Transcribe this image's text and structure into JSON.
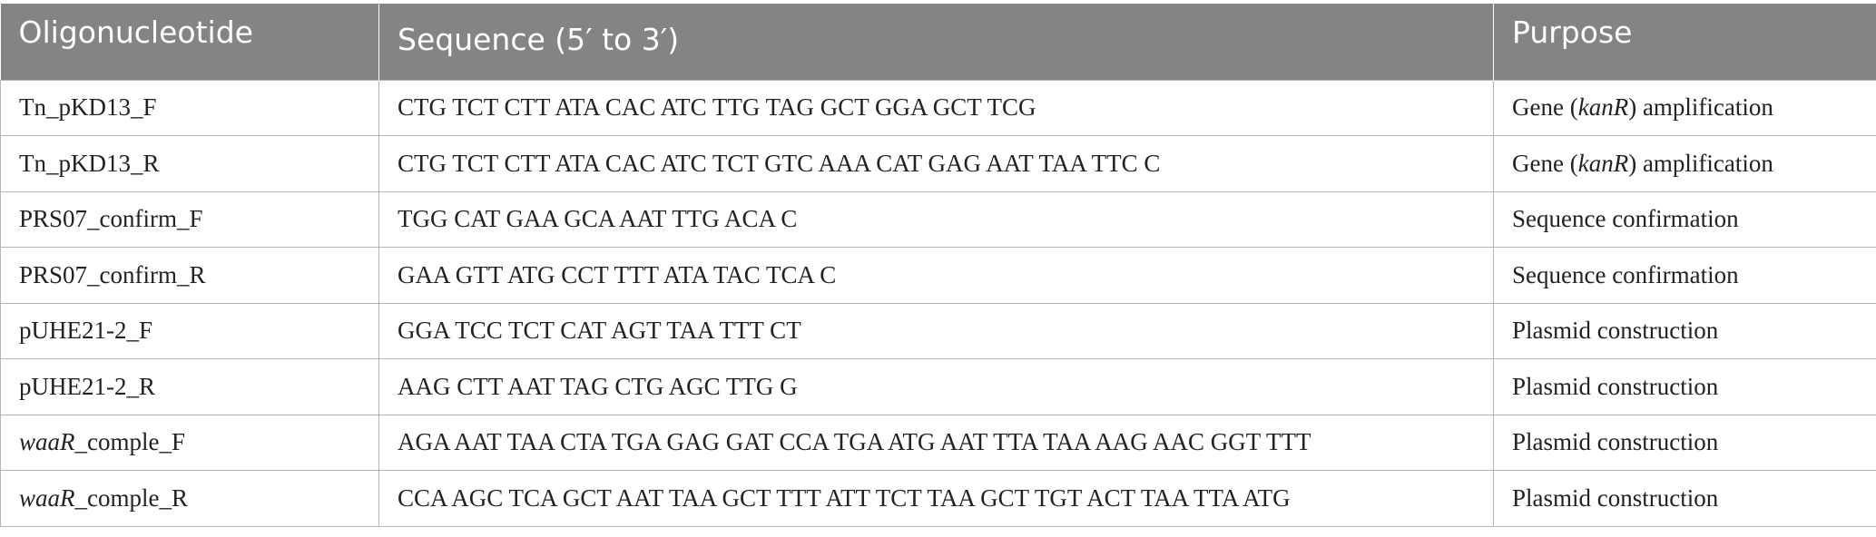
{
  "table": {
    "headers": [
      "Oligonucleotide",
      "Sequence (5′ to 3′)",
      "Purpose"
    ],
    "rows": [
      {
        "oligo_italic": "",
        "oligo_rest": "Tn_pKD13_F",
        "sequence": "CTG TCT CTT ATA CAC ATC TTG TAG GCT GGA GCT TCG",
        "purpose_pre": "Gene (",
        "purpose_italic": "kanR",
        "purpose_post": ") amplification"
      },
      {
        "oligo_italic": "",
        "oligo_rest": "Tn_pKD13_R",
        "sequence": "CTG TCT CTT ATA CAC ATC TCT GTC AAA CAT GAG AAT TAA TTC C",
        "purpose_pre": "Gene (",
        "purpose_italic": "kanR",
        "purpose_post": ") amplification"
      },
      {
        "oligo_italic": "",
        "oligo_rest": "PRS07_confirm_F",
        "sequence": "TGG CAT GAA GCA AAT TTG ACA C",
        "purpose_pre": "Sequence confirmation",
        "purpose_italic": "",
        "purpose_post": ""
      },
      {
        "oligo_italic": "",
        "oligo_rest": "PRS07_confirm_R",
        "sequence": "GAA GTT ATG CCT TTT ATA TAC TCA C",
        "purpose_pre": "Sequence confirmation",
        "purpose_italic": "",
        "purpose_post": ""
      },
      {
        "oligo_italic": "",
        "oligo_rest": "pUHE21-2_F",
        "sequence": "GGA TCC TCT CAT AGT TAA TTT CT",
        "purpose_pre": "Plasmid construction",
        "purpose_italic": "",
        "purpose_post": ""
      },
      {
        "oligo_italic": "",
        "oligo_rest": "pUHE21-2_R",
        "sequence": "AAG CTT AAT TAG CTG AGC TTG G",
        "purpose_pre": "Plasmid construction",
        "purpose_italic": "",
        "purpose_post": ""
      },
      {
        "oligo_italic": "waaR",
        "oligo_rest": "_comple_F",
        "sequence": "AGA AAT TAA CTA TGA GAG GAT CCA TGA ATG AAT TTA TAA AAG AAC GGT TTT",
        "purpose_pre": "Plasmid construction",
        "purpose_italic": "",
        "purpose_post": ""
      },
      {
        "oligo_italic": "waaR",
        "oligo_rest": "_comple_R",
        "sequence": "CCA AGC TCA GCT AAT TAA GCT TTT ATT TCT TAA GCT TGT ACT TAA TTA ATG",
        "purpose_pre": "Plasmid construction",
        "purpose_italic": "",
        "purpose_post": ""
      }
    ]
  },
  "colors": {
    "header_bg": "#838483",
    "header_text": "#ffffff",
    "grid_line": "#b5b5b5",
    "body_text": "#222222"
  }
}
